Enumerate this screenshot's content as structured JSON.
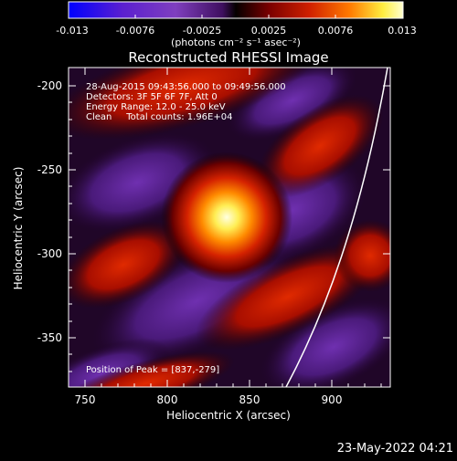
{
  "colorbar": {
    "ticks": [
      "-0.013",
      "-0.0076",
      "-0.0025",
      "0.0025",
      "0.0076",
      "0.013"
    ],
    "units_label": "(photons cm⁻² s⁻¹ asec⁻²)",
    "colors": {
      "blue": "#0000ff",
      "purple": "#7f3fbf",
      "mid_purple": "#3f0f5f",
      "dark": "#0a0000",
      "red": "#cc2200",
      "orange": "#ff8800",
      "yellow": "#ffff66",
      "white": "#ffffff"
    }
  },
  "plot": {
    "title": "Reconstructed RHESSI Image",
    "xlabel": "Heliocentric X (arcsec)",
    "ylabel": "Heliocentric Y (arcsec)",
    "x_ticks": [
      "750",
      "800",
      "850",
      "900"
    ],
    "y_ticks": [
      "-200",
      "-250",
      "-300",
      "-350"
    ],
    "xlim": [
      740,
      935
    ],
    "ylim": [
      -385,
      -188
    ],
    "annotations": {
      "time_range": "28-Aug-2015 09:43:56.000 to 09:49:56.000",
      "detectors": "Detectors: 3F 5F 6F 7F, Att 0",
      "energy": "Energy Range: 12.0 - 25.0 keV",
      "clean": "Clean     Total counts: 1.96E+04",
      "peak": "Position of Peak = [837,-279]"
    }
  },
  "footer": {
    "timestamp": "23-May-2022 04:21"
  }
}
